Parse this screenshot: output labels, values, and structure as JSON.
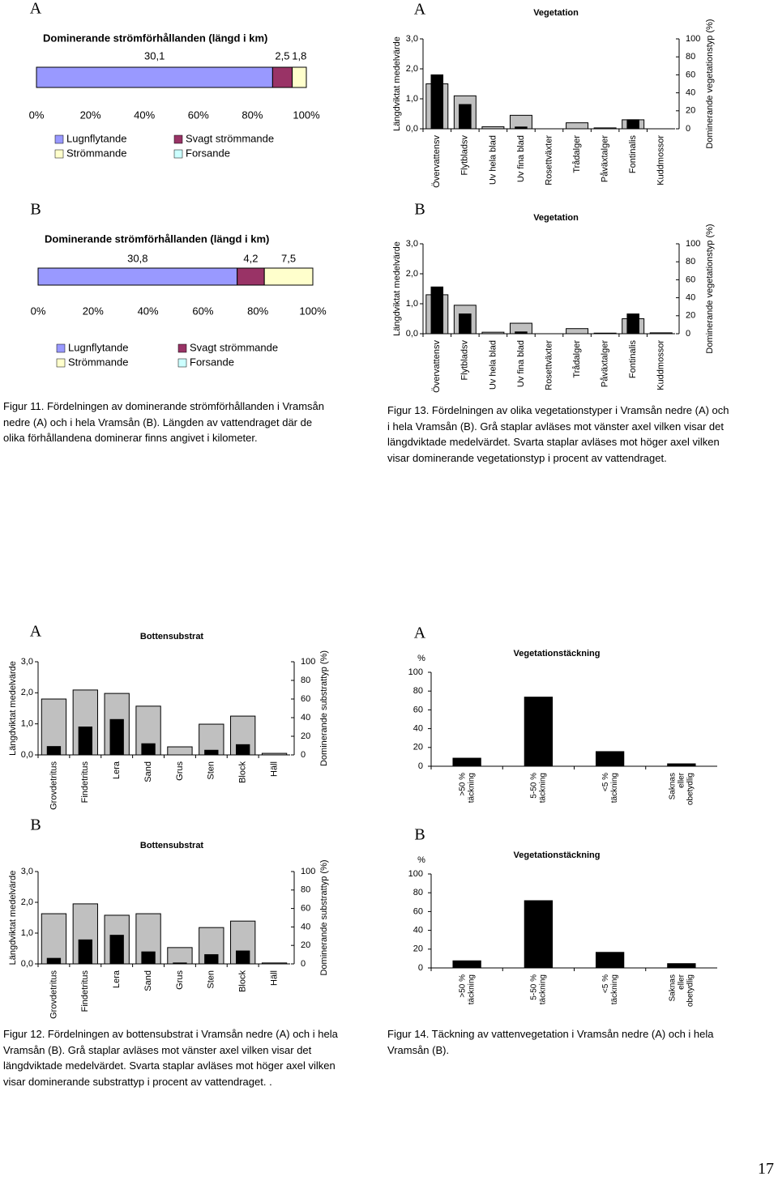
{
  "panel_labels": [
    "A",
    "A",
    "B",
    "B",
    "A",
    "A",
    "B",
    "B"
  ],
  "chart_data": [
    {
      "type": "stacked_bar_percent",
      "title": "Dominerande strömförhållanden (längd i km)",
      "series": [
        {
          "name": "Lugnflytande",
          "color": "#9999ff",
          "values": [
            30.1
          ],
          "value_labels": [
            "30,1"
          ]
        },
        {
          "name": "Svagt strömmande",
          "color": "#993366",
          "values": [
            2.5
          ],
          "value_labels": [
            "2,5"
          ]
        },
        {
          "name": "Strömmande",
          "color": "#ffffcc",
          "values": [
            1.8
          ],
          "value_labels": [
            "1,8"
          ]
        },
        {
          "name": "Forsande",
          "color": "#ccffff",
          "values": [
            null
          ]
        }
      ],
      "xlim": [
        0,
        100
      ],
      "xticks": [
        {
          "value": 0,
          "label": "0%"
        },
        {
          "value": 20,
          "label": "20%"
        },
        {
          "value": 40,
          "label": "40%"
        },
        {
          "value": 60,
          "label": "60%"
        },
        {
          "value": 80,
          "label": "80%"
        },
        {
          "value": 100,
          "label": "100%"
        }
      ]
    },
    {
      "type": "stacked_bar_percent",
      "title": "Dominerande strömförhållanden (längd i km)",
      "series": [
        {
          "name": "Lugnflytande",
          "color": "#9999ff",
          "values": [
            30.8
          ],
          "value_labels": [
            "30,8"
          ]
        },
        {
          "name": "Svagt strömmande",
          "color": "#993366",
          "values": [
            4.2
          ],
          "value_labels": [
            "4,2"
          ]
        },
        {
          "name": "Strömmande",
          "color": "#ffffcc",
          "values": [
            7.5
          ],
          "value_labels": [
            "7,5"
          ]
        },
        {
          "name": "Forsande",
          "color": "#ccffff",
          "values": [
            null
          ]
        }
      ],
      "xlim": [
        0,
        100
      ],
      "xticks": [
        {
          "value": 0,
          "label": "0%"
        },
        {
          "value": 20,
          "label": "20%"
        },
        {
          "value": 40,
          "label": "40%"
        },
        {
          "value": 60,
          "label": "60%"
        },
        {
          "value": 80,
          "label": "80%"
        },
        {
          "value": 100,
          "label": "100%"
        }
      ]
    },
    {
      "type": "dual_bar",
      "title": "Vegetation",
      "categories": [
        "Övervattensv",
        "Flytbladsv",
        "Uv hela blad",
        "Uv fina blad",
        "Rosettväxter",
        "Trådalger",
        "Påväxtalger",
        "Fontinalis",
        "Kuddmossor"
      ],
      "y_label": "Längdviktat medelvärde",
      "y2_label": "Dominerande vegetationstyp (%)",
      "series": [
        {
          "color": "#c0c0c0",
          "values": [
            1.5,
            1.1,
            0.07,
            0.45,
            0,
            0.2,
            0.03,
            0.3,
            0
          ]
        },
        {
          "color": "#000000",
          "axis": "y2",
          "values": [
            60,
            27,
            0,
            2,
            0,
            0,
            0,
            10,
            0
          ]
        }
      ],
      "ylim": [
        0,
        3
      ],
      "yticks": [
        {
          "value": 0,
          "label": "0,0"
        },
        {
          "value": 1,
          "label": "1,0"
        },
        {
          "value": 2,
          "label": "2,0"
        },
        {
          "value": 3,
          "label": "3,0"
        }
      ],
      "y2lim": [
        0,
        100
      ],
      "y2ticks": [
        0,
        20,
        40,
        60,
        80,
        100
      ]
    },
    {
      "type": "dual_bar",
      "title": "Vegetation",
      "categories": [
        "Övervattensv",
        "Flytbladsv",
        "Uv hela blad",
        "Uv fina blad",
        "Rosettväxter",
        "Trådalger",
        "Påväxtalger",
        "Fontinalis",
        "Kuddmossor"
      ],
      "y_label": "Längdviktat medelvärde",
      "y2_label": "Dominerande vegetationstyp (%)",
      "series": [
        {
          "color": "#c0c0c0",
          "values": [
            1.3,
            0.95,
            0.05,
            0.35,
            0,
            0.17,
            0.02,
            0.5,
            0.03
          ]
        },
        {
          "color": "#000000",
          "axis": "y2",
          "values": [
            52,
            22,
            0,
            2,
            0,
            0,
            0,
            22,
            0
          ]
        }
      ],
      "ylim": [
        0,
        3
      ],
      "yticks": [
        {
          "value": 0,
          "label": "0,0"
        },
        {
          "value": 1,
          "label": "1,0"
        },
        {
          "value": 2,
          "label": "2,0"
        },
        {
          "value": 3,
          "label": "3,0"
        }
      ],
      "y2lim": [
        0,
        100
      ],
      "y2ticks": [
        0,
        20,
        40,
        60,
        80,
        100
      ]
    },
    {
      "type": "dual_bar",
      "title": "Bottensubstrat",
      "categories": [
        "Grovdetritus",
        "Findetritus",
        "Lera",
        "Sand",
        "Grus",
        "Sten",
        "Block",
        "Häll"
      ],
      "y_label": "Längdviktat medelvärde",
      "y2_label": "Dominerande substrattyp (%)",
      "series": [
        {
          "color": "#c0c0c0",
          "values": [
            1.8,
            2.09,
            1.98,
            1.57,
            0.26,
            0.99,
            1.25,
            0.05
          ]
        },
        {
          "color": "#000000",
          "axis": "y2",
          "values": [
            9,
            30,
            38,
            12,
            0,
            5,
            11,
            0
          ]
        }
      ],
      "ylim": [
        0,
        3
      ],
      "yticks": [
        {
          "value": 0,
          "label": "0,0"
        },
        {
          "value": 1,
          "label": "1,0"
        },
        {
          "value": 2,
          "label": "2,0"
        },
        {
          "value": 3,
          "label": "3,0"
        }
      ],
      "y2lim": [
        0,
        100
      ],
      "y2ticks": [
        0,
        20,
        40,
        60,
        80,
        100
      ]
    },
    {
      "type": "dual_bar",
      "title": "Bottensubstrat",
      "categories": [
        "Grovdetritus",
        "Findetritus",
        "Lera",
        "Sand",
        "Grus",
        "Sten",
        "Block",
        "Häll"
      ],
      "y_label": "Längdviktat medelvärde",
      "y2_label": "Dominerande substrattyp (%)",
      "series": [
        {
          "color": "#c0c0c0",
          "values": [
            1.63,
            1.95,
            1.58,
            1.63,
            0.53,
            1.18,
            1.39,
            0.03
          ]
        },
        {
          "color": "#000000",
          "axis": "y2",
          "values": [
            6,
            26,
            31,
            13,
            1,
            10,
            14,
            0
          ]
        }
      ],
      "ylim": [
        0,
        3
      ],
      "yticks": [
        {
          "value": 0,
          "label": "0,0"
        },
        {
          "value": 1,
          "label": "1,0"
        },
        {
          "value": 2,
          "label": "2,0"
        },
        {
          "value": 3,
          "label": "3,0"
        }
      ],
      "y2lim": [
        0,
        100
      ],
      "y2ticks": [
        0,
        20,
        40,
        60,
        80,
        100
      ]
    },
    {
      "type": "bar",
      "title": "Vegetationstäckning",
      "y_label": "%",
      "categories": [
        [
          ">50 %",
          "täckning"
        ],
        [
          "5-50 %",
          "täckning"
        ],
        [
          "<5 %",
          "täckning"
        ],
        [
          "Saknas",
          "eller",
          "obetydlig"
        ]
      ],
      "values": [
        9,
        74,
        16,
        3
      ],
      "color": "#000000",
      "ylim": [
        0,
        100
      ],
      "yticks": [
        0,
        20,
        40,
        60,
        80,
        100
      ]
    },
    {
      "type": "bar",
      "title": "Vegetationstäckning",
      "y_label": "%",
      "categories": [
        [
          ">50 %",
          "täckning"
        ],
        [
          "5-50 %",
          "täckning"
        ],
        [
          "<5 %",
          "täckning"
        ],
        [
          "Saknas",
          "eller",
          "obetydlig"
        ]
      ],
      "values": [
        8,
        72,
        17,
        5
      ],
      "color": "#000000",
      "ylim": [
        0,
        100
      ],
      "yticks": [
        0,
        20,
        40,
        60,
        80,
        100
      ]
    }
  ],
  "captions": [
    "Figur 11. Fördelningen av dominerande strömförhållanden i Vramsån nedre (A) och i hela Vramsån (B). Längden av vattendraget där de olika förhållandena dominerar finns angivet i kilometer.",
    "Figur 13. Fördelningen av olika vegetationstyper i Vramsån nedre (A) och i hela Vramsån (B). Grå staplar avläses mot vänster axel vilken visar det längdviktade medelvärdet. Svarta staplar avläses mot höger axel vilken visar dominerande vegetationstyp i procent av vattendraget.",
    "Figur 12. Fördelningen av bottensubstrat i Vramsån nedre (A) och i hela Vramsån (B). Grå staplar avläses mot vänster axel vilken visar det längdviktade medelvärdet. Svarta staplar avläses mot höger axel vilken visar dominerande substrattyp i procent av vattendraget. .",
    "Figur 14. Täckning av vattenvegetation i Vramsån nedre (A) och i hela Vramsån (B)."
  ],
  "page_number": 17
}
